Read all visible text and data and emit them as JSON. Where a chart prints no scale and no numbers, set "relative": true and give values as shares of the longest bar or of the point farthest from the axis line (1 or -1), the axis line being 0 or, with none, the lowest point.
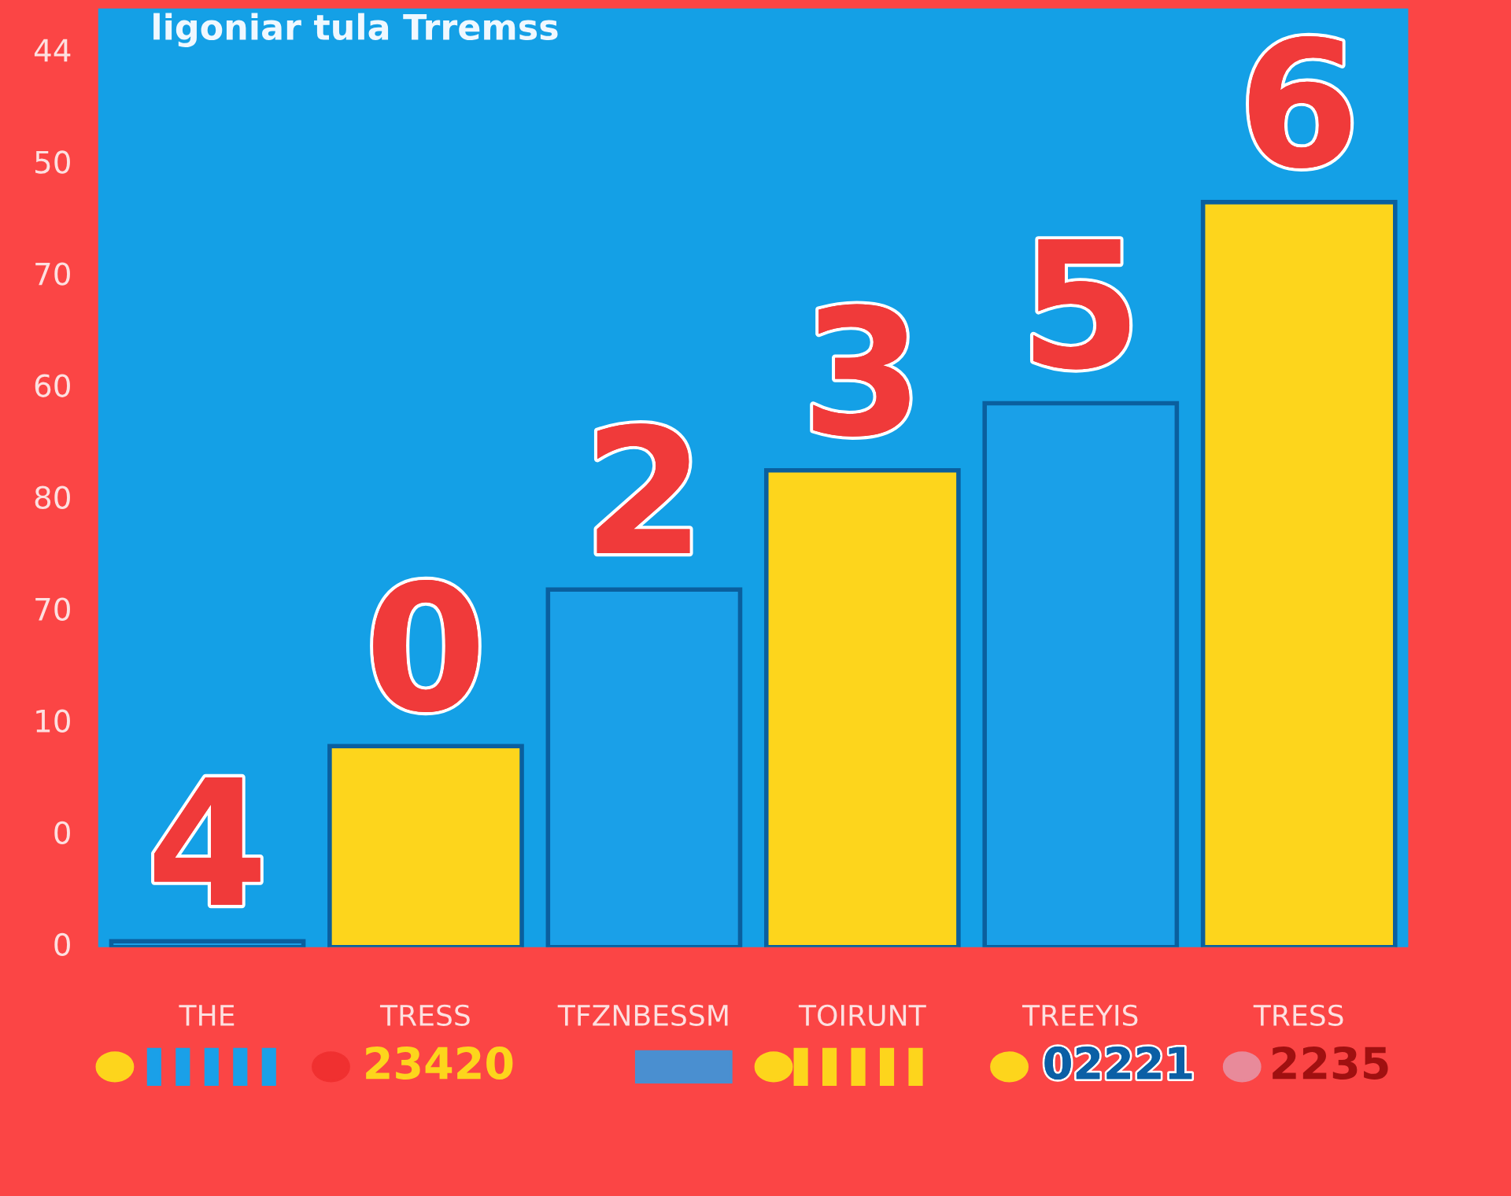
{
  "chart_data": {
    "type": "bar",
    "title": "ligoniar tula Trremss",
    "categories": [
      "THE",
      "TRESS",
      "TFZNBESSM",
      "TOIRUNT",
      "TREEYIS",
      "TRESS"
    ],
    "values": [
      0.008,
      0.27,
      0.48,
      0.64,
      0.73,
      1
    ],
    "colors": [
      "#1aa0e8",
      "#fdd51c",
      "#1aa0e8",
      "#fdd51c",
      "#1aa0e8",
      "#fdd51c"
    ],
    "relative": true,
    "annotations": [
      "44",
      "50",
      "70",
      "60",
      "80",
      "70",
      "10",
      "0",
      "0",
      "4",
      "0",
      "2",
      "3",
      "5",
      "6",
      "23420",
      "02221",
      "2235"
    ]
  }
}
